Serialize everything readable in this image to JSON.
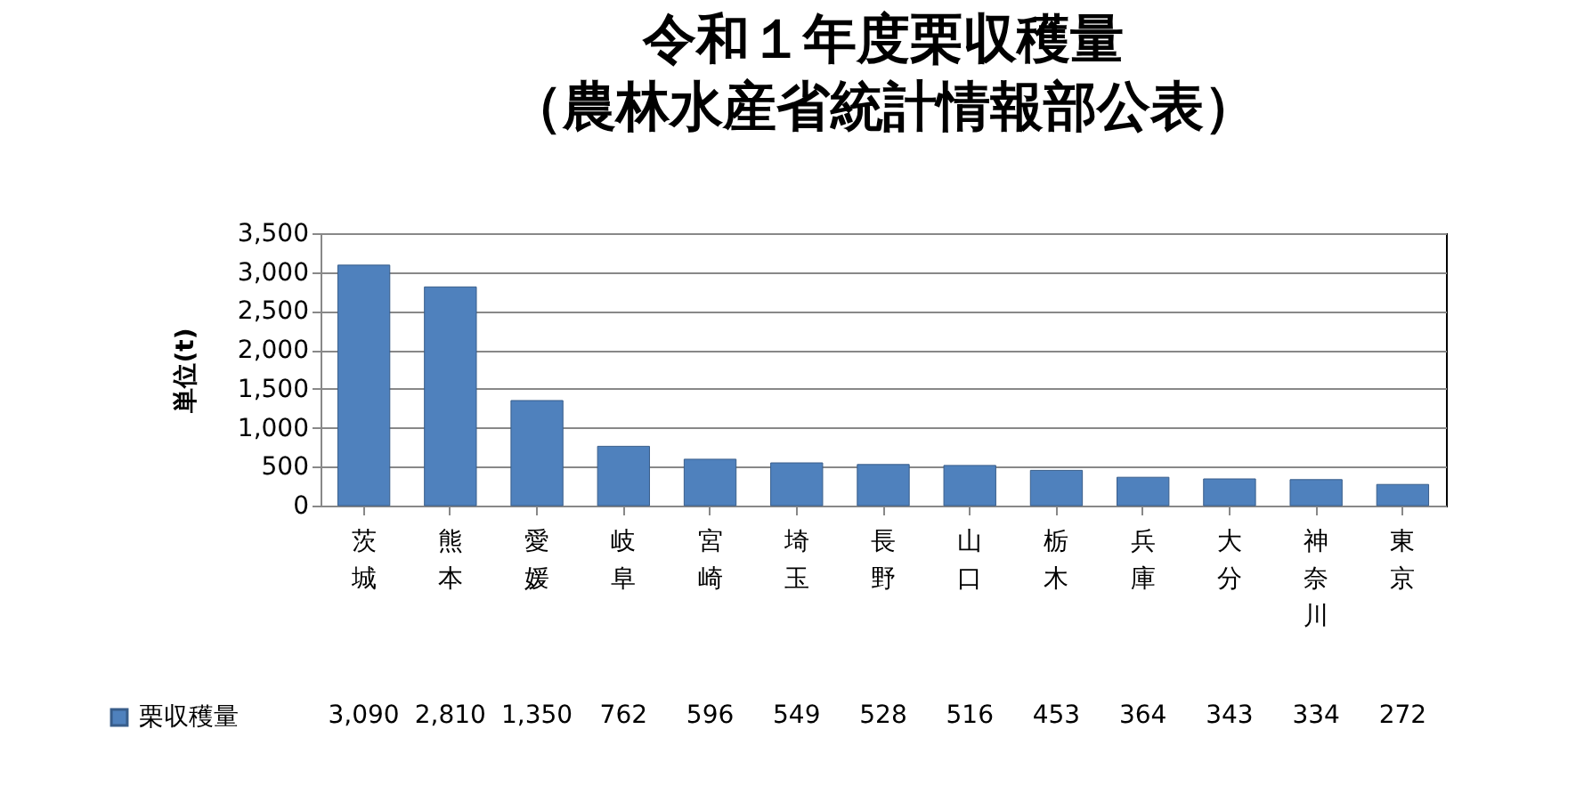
{
  "chart_data": {
    "type": "bar",
    "title": "令和１年度栗収穫量",
    "subtitle": "（農林水産省統計情報部公表）",
    "ylabel": "単位(t)",
    "categories": [
      "茨城",
      "熊本",
      "愛媛",
      "岐阜",
      "宮崎",
      "埼玉",
      "長野",
      "山口",
      "栃木",
      "兵庫",
      "大分",
      "神奈川",
      "東京"
    ],
    "series": [
      {
        "name": "栗収穫量",
        "color": "#4f81bd",
        "values": [
          3090,
          2810,
          1350,
          762,
          596,
          549,
          528,
          516,
          453,
          364,
          343,
          334,
          272
        ]
      }
    ],
    "value_labels": [
      "3,090",
      "2,810",
      "1,350",
      "762",
      "596",
      "549",
      "528",
      "516",
      "453",
      "364",
      "343",
      "334",
      "272"
    ],
    "ylim": [
      0,
      3500
    ],
    "yticks": [
      0,
      500,
      {
        "value": 1000,
        "label": "1,000"
      },
      {
        "value": 1500,
        "label": "1,500"
      },
      {
        "value": 2000,
        "label": "2,000"
      },
      {
        "value": 2500,
        "label": "2,500"
      },
      {
        "value": 3000,
        "label": "3,000"
      },
      {
        "value": 3500,
        "label": "3,500"
      }
    ],
    "grid": "y",
    "legend": "bottom"
  }
}
